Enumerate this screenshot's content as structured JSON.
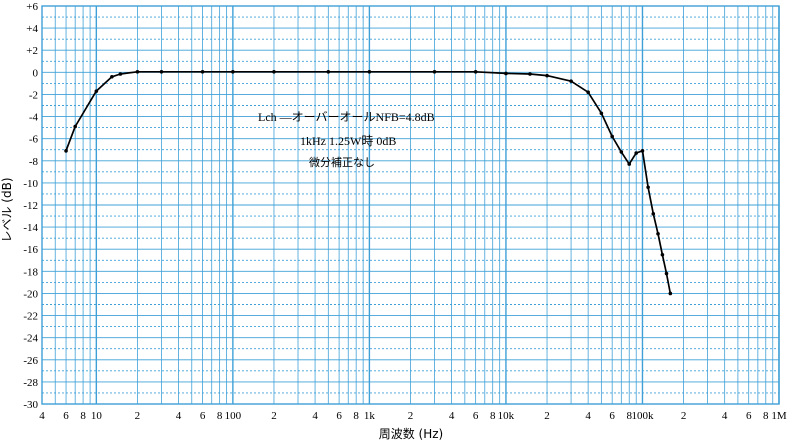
{
  "chart_data": {
    "type": "line",
    "title": "",
    "xlabel": "周波数 (Hz)",
    "ylabel": "レベル (dB)",
    "x_scale": "log",
    "xlim": [
      4,
      1000000
    ],
    "ylim": [
      -30,
      6
    ],
    "y_ticks": [
      "+6",
      "+4",
      "+2",
      "0",
      "-2",
      "-4",
      "-6",
      "-8",
      "-10",
      "-12",
      "-14",
      "-16",
      "-18",
      "-20",
      "-22",
      "-24",
      "-26",
      "-28",
      "-30"
    ],
    "y_tick_values": [
      6,
      4,
      2,
      0,
      -2,
      -4,
      -6,
      -8,
      -10,
      -12,
      -14,
      -16,
      -18,
      -20,
      -22,
      -24,
      -26,
      -28,
      -30
    ],
    "x_ticks": [
      {
        "label": "4",
        "value": 4
      },
      {
        "label": "6",
        "value": 6
      },
      {
        "label": "8",
        "value": 8
      },
      {
        "label": "10",
        "value": 10
      },
      {
        "label": "2",
        "value": 20
      },
      {
        "label": "4",
        "value": 40
      },
      {
        "label": "6",
        "value": 60
      },
      {
        "label": "8",
        "value": 80
      },
      {
        "label": "100",
        "value": 100
      },
      {
        "label": "2",
        "value": 200
      },
      {
        "label": "4",
        "value": 400
      },
      {
        "label": "6",
        "value": 600
      },
      {
        "label": "8",
        "value": 800
      },
      {
        "label": "1k",
        "value": 1000
      },
      {
        "label": "2",
        "value": 2000
      },
      {
        "label": "4",
        "value": 4000
      },
      {
        "label": "6",
        "value": 6000
      },
      {
        "label": "8",
        "value": 8000
      },
      {
        "label": "10k",
        "value": 10000
      },
      {
        "label": "2",
        "value": 20000
      },
      {
        "label": "4",
        "value": 40000
      },
      {
        "label": "6",
        "value": 60000
      },
      {
        "label": "8",
        "value": 80000
      },
      {
        "label": "100k",
        "value": 100000
      },
      {
        "label": "2",
        "value": 200000
      },
      {
        "label": "4",
        "value": 400000
      },
      {
        "label": "6",
        "value": 600000
      },
      {
        "label": "8",
        "value": 800000
      },
      {
        "label": "1M",
        "value": 1000000
      }
    ],
    "grid": true,
    "annotations": [
      "Lch ―オーバーオールNFB=4.8dB",
      "1kHz 1.25W時 0dB",
      "微分補正なし"
    ],
    "series": [
      {
        "x": [
          6,
          7,
          10,
          13,
          15,
          20,
          30,
          60,
          100,
          200,
          500,
          1000,
          3000,
          6000,
          10000,
          15000,
          20000,
          30000,
          40000,
          50000,
          60000,
          70000,
          80000,
          90000,
          100000,
          110000,
          120000,
          130000,
          140000,
          150000,
          160000
        ],
        "y": [
          -7.1,
          -4.9,
          -1.7,
          -0.4,
          -0.15,
          0.05,
          0.05,
          0.05,
          0.05,
          0.05,
          0.05,
          0.05,
          0.05,
          0.05,
          -0.1,
          -0.15,
          -0.3,
          -0.8,
          -1.8,
          -3.7,
          -5.8,
          -7.2,
          -8.3,
          -7.3,
          -7.1,
          -10.4,
          -12.8,
          -14.6,
          -16.5,
          -18.2,
          -20.0
        ]
      }
    ],
    "colors": {
      "grid": "#3fa0d8",
      "line": "#000000",
      "text": "#000000"
    }
  }
}
